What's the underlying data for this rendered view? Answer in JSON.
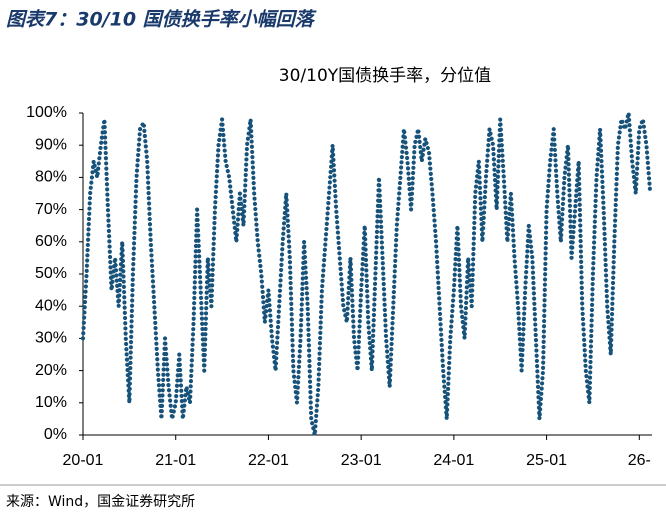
{
  "header": {
    "title": "图表7：30/10 国债换手率小幅回落"
  },
  "chart_data": {
    "type": "line",
    "title": "30/10Y国债换手率，分位值",
    "categories": [
      "20-01",
      null,
      null,
      null,
      null,
      null,
      null,
      null,
      null,
      null,
      null,
      null,
      null,
      null,
      null,
      null,
      null,
      null,
      null,
      null,
      null,
      null,
      null,
      null,
      null,
      null,
      "21-01",
      null,
      null,
      null,
      null,
      null,
      null,
      null,
      null,
      null,
      null,
      null,
      null,
      null,
      null,
      null,
      null,
      null,
      null,
      null,
      null,
      null,
      null,
      null,
      null,
      null,
      "22-01",
      null,
      null,
      null,
      null,
      null,
      null,
      null,
      null,
      null,
      null,
      null,
      null,
      null,
      null,
      null,
      null,
      null,
      null,
      null,
      null,
      null,
      null,
      null,
      null,
      null,
      "23-01",
      null,
      null,
      null,
      null,
      null,
      null,
      null,
      null,
      null,
      null,
      null,
      null,
      null,
      null,
      null,
      null,
      null,
      null,
      null,
      null,
      null,
      null,
      null,
      null,
      null,
      "24-01",
      null,
      null,
      null,
      null,
      null,
      null,
      null,
      null,
      null,
      null,
      null,
      null,
      null,
      null,
      null,
      null,
      null,
      null,
      null,
      null,
      null,
      null,
      null,
      null,
      null,
      "25-01",
      null,
      null,
      null,
      null,
      null,
      null,
      null,
      null,
      null,
      null,
      null,
      null,
      null,
      null,
      null,
      null,
      null,
      null,
      null,
      null,
      null,
      null,
      null,
      null,
      null,
      "26-",
      null,
      null,
      null
    ],
    "series": [
      {
        "name": "30/10Y国债换手率分位值",
        "color": "#17527a",
        "values": [
          30,
          50,
          75,
          85,
          80,
          90,
          98,
          70,
          45,
          55,
          40,
          60,
          30,
          10,
          50,
          80,
          95,
          97,
          85,
          60,
          40,
          20,
          5,
          30,
          15,
          5,
          10,
          25,
          5,
          15,
          10,
          35,
          70,
          45,
          20,
          55,
          40,
          70,
          90,
          98,
          85,
          80,
          70,
          60,
          75,
          65,
          90,
          98,
          75,
          60,
          50,
          35,
          45,
          30,
          20,
          40,
          60,
          75,
          55,
          20,
          10,
          30,
          60,
          40,
          5,
          0,
          15,
          45,
          60,
          75,
          90,
          70,
          55,
          40,
          35,
          55,
          30,
          20,
          45,
          65,
          35,
          20,
          50,
          80,
          55,
          30,
          15,
          40,
          65,
          80,
          95,
          85,
          70,
          90,
          95,
          85,
          92,
          88,
          75,
          60,
          40,
          20,
          5,
          30,
          45,
          65,
          40,
          30,
          55,
          40,
          75,
          85,
          60,
          80,
          95,
          90,
          70,
          98,
          80,
          60,
          75,
          55,
          40,
          20,
          45,
          65,
          55,
          30,
          5,
          20,
          70,
          85,
          95,
          75,
          60,
          80,
          90,
          55,
          70,
          85,
          40,
          20,
          10,
          50,
          80,
          95,
          70,
          40,
          25,
          60,
          90,
          98,
          95,
          100,
          85,
          75,
          95,
          98,
          90,
          76
        ]
      }
    ],
    "ylim": [
      0,
      100
    ],
    "yticks": [
      {
        "value": 0,
        "label": "0%"
      },
      {
        "value": 10,
        "label": "10%"
      },
      {
        "value": 20,
        "label": "20%"
      },
      {
        "value": 30,
        "label": "30%"
      },
      {
        "value": 40,
        "label": "40%"
      },
      {
        "value": 50,
        "label": "50%"
      },
      {
        "value": 60,
        "label": "60%"
      },
      {
        "value": 70,
        "label": "70%"
      },
      {
        "value": 80,
        "label": "80%"
      },
      {
        "value": 90,
        "label": "90%"
      },
      {
        "value": 100,
        "label": "100%"
      }
    ]
  },
  "footer": {
    "source": "来源：Wind，国金证券研究所"
  }
}
